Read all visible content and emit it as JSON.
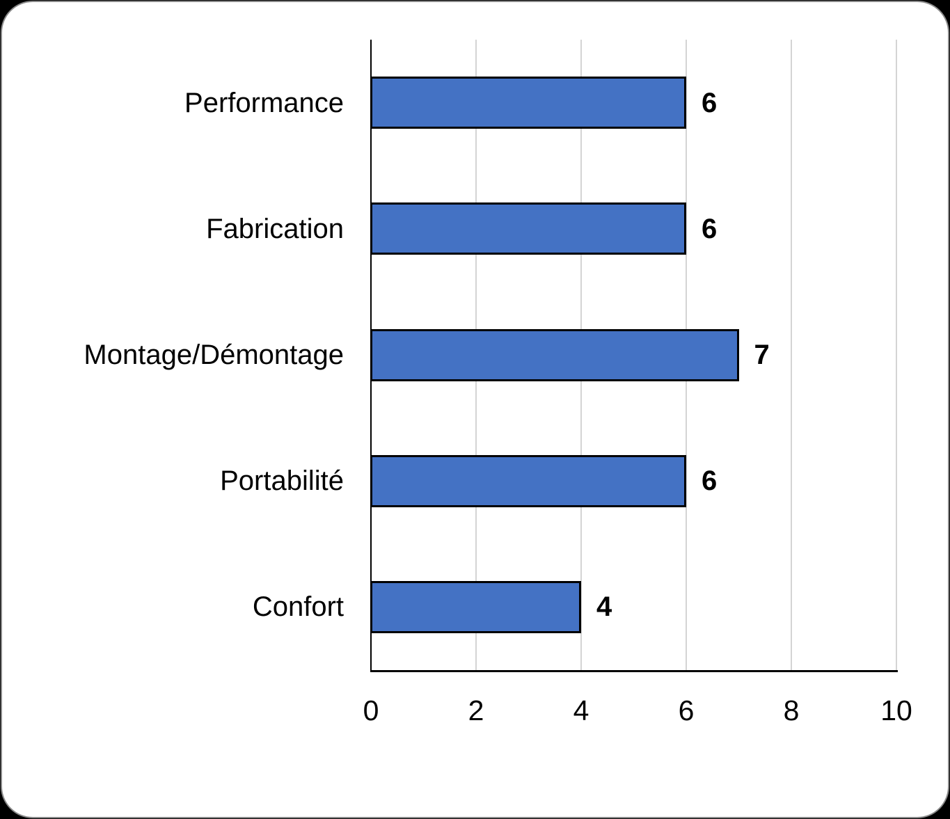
{
  "page": {
    "background_color": "#000000"
  },
  "card": {
    "background_color": "#ffffff",
    "border_color": "#8a8a8a"
  },
  "chart_data": {
    "type": "bar",
    "orientation": "horizontal",
    "title": "",
    "xlabel": "",
    "ylabel": "",
    "categories": [
      "Performance",
      "Fabrication",
      "Montage/Démontage",
      "Portabilité",
      "Confort"
    ],
    "values": [
      6,
      6,
      7,
      6,
      4
    ],
    "data_labels": [
      "6",
      "6",
      "7",
      "6",
      "4"
    ],
    "xlim": [
      0,
      10
    ],
    "xticks": [
      0,
      2,
      4,
      6,
      8,
      10
    ],
    "xtick_labels": [
      "0",
      "2",
      "4",
      "6",
      "8",
      "10"
    ],
    "grid": "vertical",
    "legend": "none",
    "bar_color": "#4472C4",
    "bar_border_color": "#000000",
    "axis_color": "#000000",
    "gridline_color": "#d4d4d4",
    "label_color": "#000000"
  }
}
